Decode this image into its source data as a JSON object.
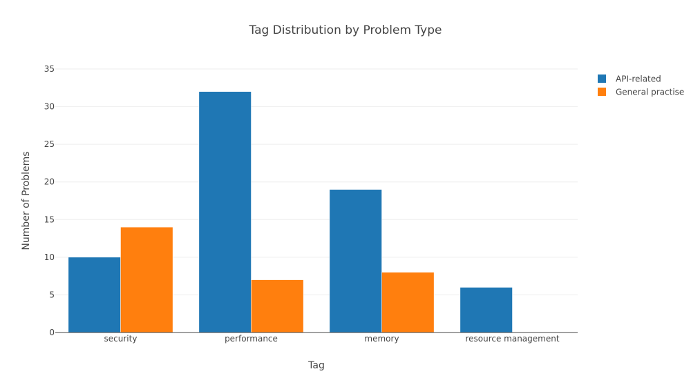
{
  "chart_data": {
    "type": "bar",
    "title": "Tag Distribution by Problem Type",
    "xlabel": "Tag",
    "ylabel": "Number of Problems",
    "categories": [
      "security",
      "performance",
      "memory",
      "resource management"
    ],
    "series": [
      {
        "name": "API-related",
        "color": "#1f77b4",
        "values": [
          10,
          32,
          19,
          6
        ]
      },
      {
        "name": "General practise",
        "color": "#ff7f0e",
        "values": [
          14,
          7,
          8,
          0
        ]
      }
    ],
    "ylim": [
      0,
      35
    ],
    "yticks": [
      0,
      5,
      10,
      15,
      20,
      25,
      30,
      35
    ],
    "grid": true,
    "legend_position": "top-right"
  }
}
